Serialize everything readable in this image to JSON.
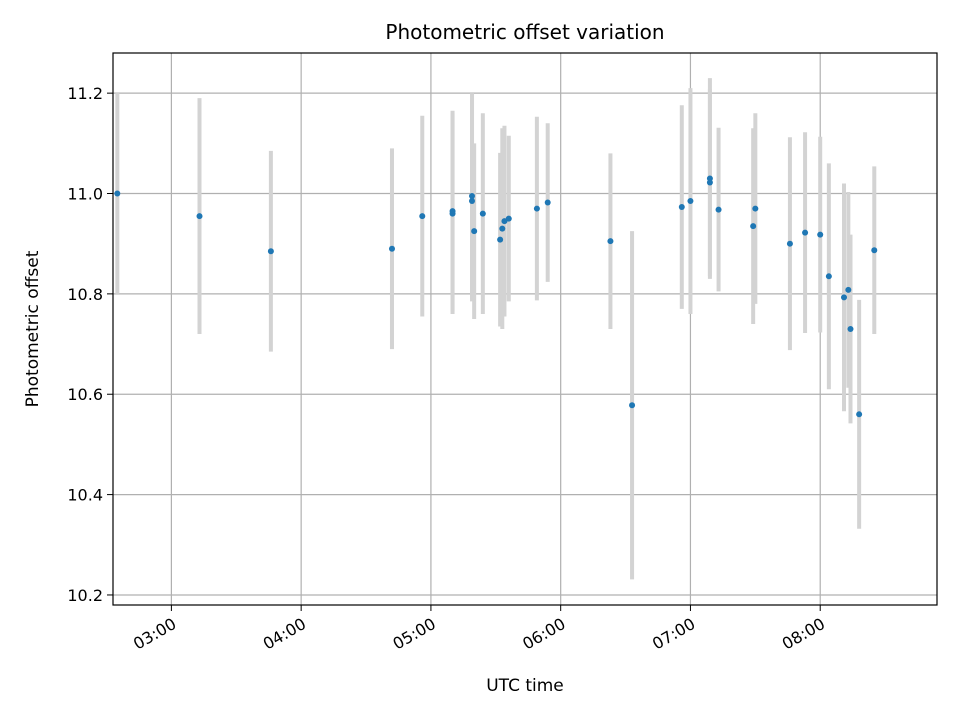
{
  "chart_data": {
    "type": "scatter",
    "title": "Photometric offset variation",
    "xlabel": "UTC time",
    "ylabel": "Photometric offset",
    "x_ticks": [
      "03:00",
      "04:00",
      "05:00",
      "06:00",
      "07:00",
      "08:00"
    ],
    "y_ticks": [
      "10.2",
      "10.4",
      "10.6",
      "10.8",
      "11.0",
      "11.2"
    ],
    "xlim": [
      "02:33",
      "08:54"
    ],
    "ylim": [
      10.18,
      11.28
    ],
    "grid": true,
    "point_color": "#1f77b4",
    "errorbar_color": "#d3d3d3",
    "points": [
      {
        "t": "02:35",
        "y": 11.0,
        "err": 0.2
      },
      {
        "t": "03:13",
        "y": 10.955,
        "err": 0.235
      },
      {
        "t": "03:46",
        "y": 10.885,
        "err": 0.2
      },
      {
        "t": "04:42",
        "y": 10.89,
        "err": 0.2
      },
      {
        "t": "04:56",
        "y": 10.955,
        "err": 0.2
      },
      {
        "t": "05:10",
        "y": 10.965,
        "err": 0.2
      },
      {
        "t": "05:10",
        "y": 10.96,
        "err": 0.2
      },
      {
        "t": "05:19",
        "y": 10.995,
        "err": 0.205
      },
      {
        "t": "05:19",
        "y": 10.985,
        "err": 0.2
      },
      {
        "t": "05:20",
        "y": 10.925,
        "err": 0.175
      },
      {
        "t": "05:24",
        "y": 10.96,
        "err": 0.2
      },
      {
        "t": "05:32",
        "y": 10.908,
        "err": 0.173
      },
      {
        "t": "05:33",
        "y": 10.93,
        "err": 0.2
      },
      {
        "t": "05:34",
        "y": 10.945,
        "err": 0.19
      },
      {
        "t": "05:36",
        "y": 10.95,
        "err": 0.165
      },
      {
        "t": "05:49",
        "y": 10.97,
        "err": 0.183
      },
      {
        "t": "05:54",
        "y": 10.982,
        "err": 0.158
      },
      {
        "t": "06:23",
        "y": 10.905,
        "err": 0.175
      },
      {
        "t": "06:33",
        "y": 10.578,
        "err": 0.347
      },
      {
        "t": "06:56",
        "y": 10.973,
        "err": 0.203
      },
      {
        "t": "07:00",
        "y": 10.985,
        "err": 0.225
      },
      {
        "t": "07:09",
        "y": 11.03,
        "err": 0.2
      },
      {
        "t": "07:09",
        "y": 11.022,
        "err": 0.186
      },
      {
        "t": "07:13",
        "y": 10.968,
        "err": 0.163
      },
      {
        "t": "07:29",
        "y": 10.935,
        "err": 0.195
      },
      {
        "t": "07:30",
        "y": 10.97,
        "err": 0.19
      },
      {
        "t": "07:46",
        "y": 10.9,
        "err": 0.212
      },
      {
        "t": "07:53",
        "y": 10.922,
        "err": 0.2
      },
      {
        "t": "08:00",
        "y": 10.918,
        "err": 0.195
      },
      {
        "t": "08:04",
        "y": 10.835,
        "err": 0.225
      },
      {
        "t": "08:11",
        "y": 10.793,
        "err": 0.227
      },
      {
        "t": "08:13",
        "y": 10.808,
        "err": 0.195
      },
      {
        "t": "08:14",
        "y": 10.73,
        "err": 0.188
      },
      {
        "t": "08:18",
        "y": 10.56,
        "err": 0.228
      },
      {
        "t": "08:25",
        "y": 10.887,
        "err": 0.167
      }
    ]
  }
}
